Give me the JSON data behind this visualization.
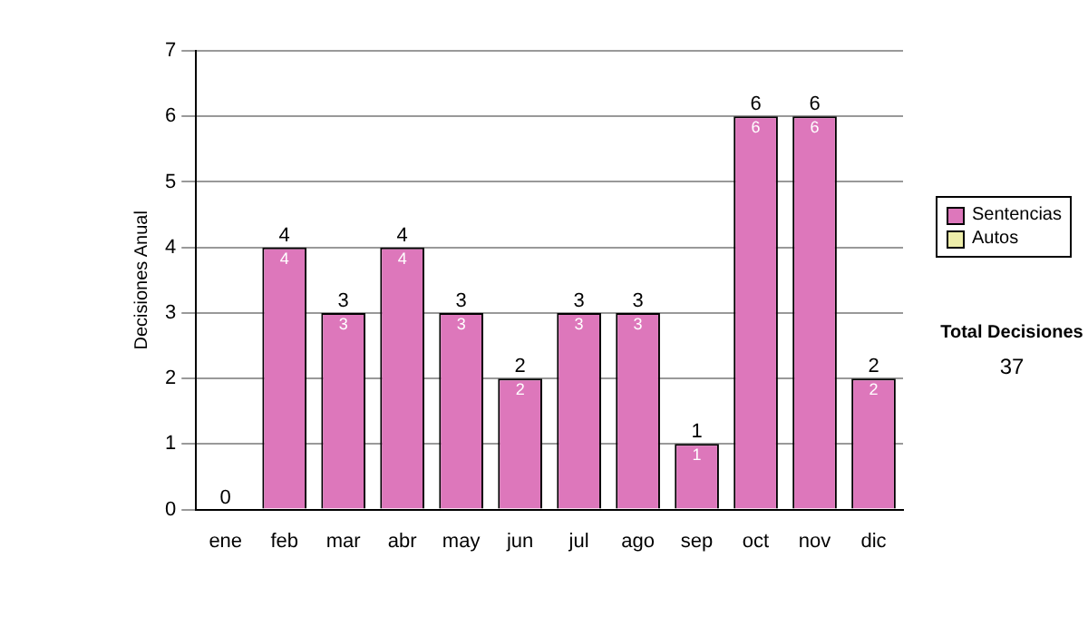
{
  "chart_data": {
    "type": "bar",
    "stacked": true,
    "ylabel": "Decisiones Anual",
    "categories": [
      "ene",
      "feb",
      "mar",
      "abr",
      "may",
      "jun",
      "jul",
      "ago",
      "sep",
      "oct",
      "nov",
      "dic"
    ],
    "series": [
      {
        "name": "Sentencias",
        "color": "#dd77bb",
        "values": [
          0,
          4,
          3,
          4,
          3,
          2,
          3,
          3,
          1,
          6,
          6,
          2
        ],
        "value_labels": [
          null,
          "4",
          "3",
          "4",
          "3",
          "2",
          "3",
          "3",
          "1",
          "6",
          "6",
          "2"
        ]
      },
      {
        "name": "Autos",
        "color": "#eeeeaa",
        "values": [
          0,
          0,
          0,
          0,
          0,
          0,
          0,
          0,
          0,
          0,
          0,
          0
        ]
      }
    ],
    "totals": [
      "0",
      "4",
      "3",
      "4",
      "3",
      "2",
      "3",
      "3",
      "1",
      "6",
      "6",
      "2"
    ],
    "ylim": [
      0,
      7
    ],
    "yticks": [
      0,
      1,
      2,
      3,
      4,
      5,
      6,
      7
    ],
    "grid": "y",
    "legend": "right",
    "annotations": [
      "Total Decisiones",
      "37"
    ]
  }
}
